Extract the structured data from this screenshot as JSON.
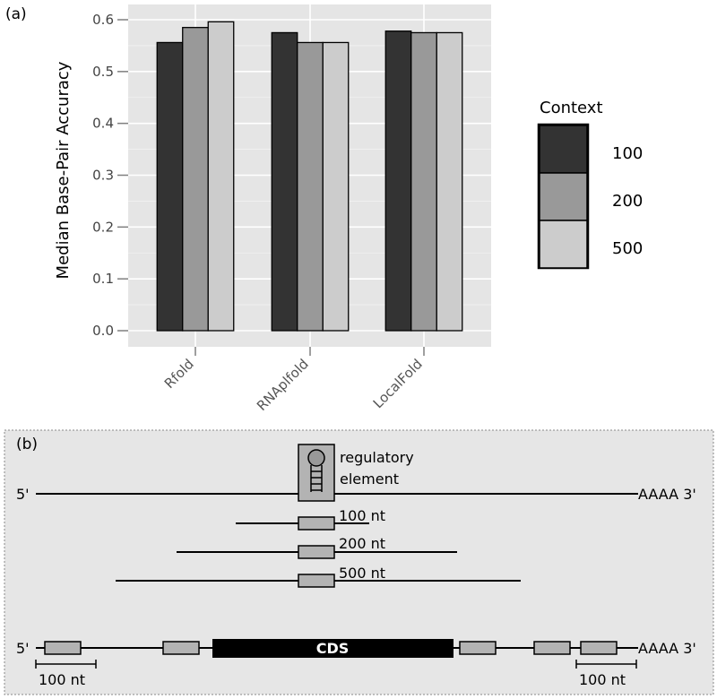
{
  "panel_a_label": "(a)",
  "panel_b_label": "(b)",
  "chart_data": {
    "type": "bar",
    "title": "",
    "xlabel": "",
    "ylabel": "Median Base-Pair Accuracy",
    "categories": [
      "Rfold",
      "RNAplfold",
      "LocalFold"
    ],
    "series": [
      {
        "name": "100",
        "color": "#333333",
        "values": [
          0.556,
          0.575,
          0.578
        ]
      },
      {
        "name": "200",
        "color": "#999999",
        "values": [
          0.585,
          0.556,
          0.575
        ]
      },
      {
        "name": "500",
        "color": "#cccccc",
        "values": [
          0.596,
          0.556,
          0.575
        ]
      }
    ],
    "ylim": [
      0,
      0.62
    ],
    "yticks": [
      "0.0",
      "0.1",
      "0.2",
      "0.3",
      "0.4",
      "0.5",
      "0.6"
    ],
    "grid": true,
    "legend": {
      "title": "Context",
      "placement": "right"
    },
    "background": "#e5e5e5"
  },
  "diagram": {
    "five_prime": "5'",
    "three_prime": "AAAA 3'",
    "regulatory_line1": "regulatory",
    "regulatory_line2": "element",
    "context_labels": [
      "100 nt",
      "200 nt",
      "500 nt"
    ],
    "cds_label": "CDS",
    "scale_label_left": "100 nt",
    "scale_label_right": "100 nt",
    "background": "#e6e6e6",
    "box_color": "#b3b3b3",
    "cds_color": "#000000"
  }
}
